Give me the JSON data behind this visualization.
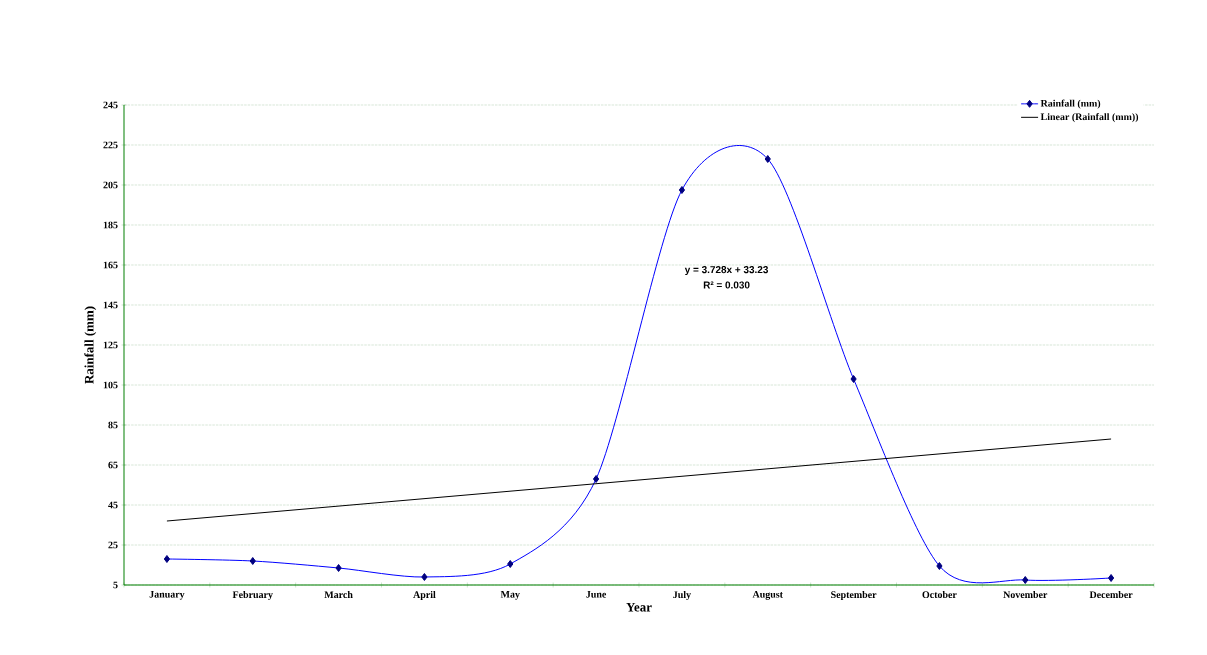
{
  "chart_data": {
    "type": "line",
    "xlabel": "Year",
    "ylabel": "Rainfall (mm)",
    "categories": [
      "January",
      "February",
      "March",
      "April",
      "May",
      "June",
      "July",
      "August",
      "September",
      "October",
      "November",
      "December"
    ],
    "series": [
      {
        "name": "Rainfall (mm)",
        "color": "#0000ff",
        "marker": "diamond",
        "values": [
          18,
          17,
          13.5,
          9,
          15.5,
          58,
          202.5,
          218,
          108,
          14.5,
          7.5,
          8.5
        ]
      },
      {
        "name": "Linear (Rainfall (mm))",
        "type": "line",
        "color": "#000000",
        "marker": "none",
        "x": [
          "January",
          "December"
        ],
        "values": [
          37,
          78
        ]
      }
    ],
    "ylim": [
      5,
      245
    ],
    "yticks": [
      5,
      25,
      45,
      65,
      85,
      105,
      125,
      145,
      165,
      185,
      205,
      225,
      245
    ],
    "grid": "y",
    "legend": "top right",
    "annotations": [
      "y = 3.728x + 33.23",
      "R² = 0.030"
    ]
  }
}
